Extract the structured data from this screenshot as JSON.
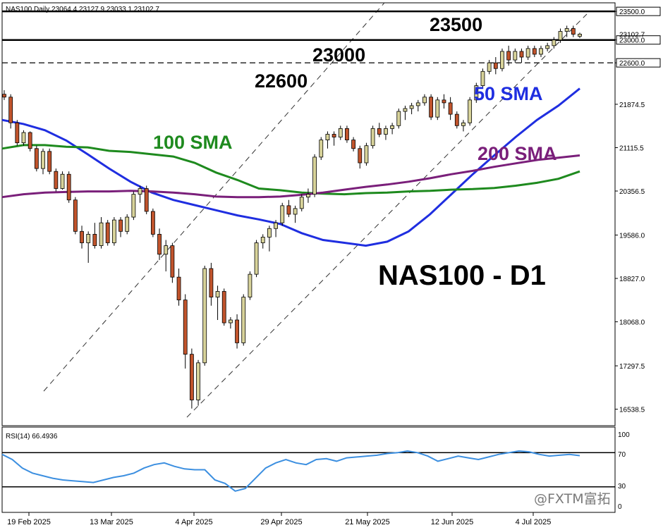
{
  "header": {
    "symbol_line": "NAS100,Daily  23064.4 23127.9 23033.1 23102.7"
  },
  "watermark": "@FXTM富拓",
  "annotations": {
    "big_title": "NAS100 - D1",
    "level_23500": "23500",
    "level_23000": "23000",
    "level_22600": "22600",
    "sma50": "50 SMA",
    "sma100": "100 SMA",
    "sma200": "200 SMA"
  },
  "rsi_panel": {
    "label": "RSI(14) 66.4936",
    "scale": [
      "100",
      "70",
      "30",
      "0"
    ]
  },
  "colors": {
    "bull_candle": "#d8d39a",
    "bear_candle": "#c1542c",
    "sma50": "#1f2ee0",
    "sma100": "#1e8a1e",
    "sma200": "#7a1f7a",
    "rsi_line": "#3c8fe0",
    "annotation_black": "#000000"
  },
  "chart_data": {
    "type": "candlestick",
    "title": "NAS100 - D1",
    "x_tick_labels": [
      "19 Feb 2025",
      "13 Mar 2025",
      "4 Apr 2025",
      "29 Apr 2025",
      "21 May 2025",
      "12 Jun 2025",
      "4 Jul 2025"
    ],
    "y_tick_labels": [
      "23500.0",
      "23000.0",
      "22600.0",
      "21874.5",
      "21115.5",
      "20356.5",
      "19586.0",
      "18827.0",
      "18068.0",
      "17297.5",
      "16538.5"
    ],
    "current_price_label": "23102.7",
    "ylim": [
      16250,
      23650
    ],
    "horizontal_levels": [
      23500,
      23000,
      22600
    ],
    "ohlc": [
      [
        22050,
        22120,
        21950,
        22000
      ],
      [
        22000,
        22050,
        21450,
        21550
      ],
      [
        21550,
        21600,
        21150,
        21200
      ],
      [
        21200,
        21420,
        21150,
        21380
      ],
      [
        21380,
        21400,
        21050,
        21100
      ],
      [
        21100,
        21150,
        20700,
        20750
      ],
      [
        20750,
        21100,
        20650,
        21050
      ],
      [
        21050,
        21100,
        20650,
        20700
      ],
      [
        20700,
        20750,
        20350,
        20400
      ],
      [
        20400,
        20700,
        20380,
        20650
      ],
      [
        20650,
        20700,
        20150,
        20200
      ],
      [
        20200,
        20250,
        19600,
        19650
      ],
      [
        19650,
        19750,
        19350,
        19450
      ],
      [
        19450,
        19650,
        19100,
        19600
      ],
      [
        19600,
        19800,
        19350,
        19400
      ],
      [
        19400,
        19900,
        19350,
        19800
      ],
      [
        19800,
        19850,
        19400,
        19450
      ],
      [
        19450,
        19900,
        19400,
        19850
      ],
      [
        19850,
        19900,
        19550,
        19650
      ],
      [
        19650,
        19950,
        19600,
        19900
      ],
      [
        19900,
        20350,
        19850,
        20300
      ],
      [
        20300,
        20450,
        20150,
        20400
      ],
      [
        20400,
        20450,
        19950,
        20000
      ],
      [
        20000,
        20050,
        19550,
        19600
      ],
      [
        19600,
        19700,
        19150,
        19250
      ],
      [
        19250,
        19500,
        18950,
        19400
      ],
      [
        19400,
        19450,
        18750,
        18850
      ],
      [
        18850,
        19000,
        18350,
        18450
      ],
      [
        18450,
        18550,
        17250,
        17500
      ],
      [
        17500,
        17600,
        16550,
        16700
      ],
      [
        16700,
        17400,
        16600,
        17350
      ],
      [
        17350,
        19050,
        17300,
        19000
      ],
      [
        19000,
        19100,
        18350,
        18500
      ],
      [
        18500,
        18700,
        18100,
        18600
      ],
      [
        18600,
        18650,
        18000,
        18050
      ],
      [
        18050,
        18150,
        17950,
        18100
      ],
      [
        18100,
        18200,
        17600,
        17700
      ],
      [
        17700,
        18550,
        17650,
        18500
      ],
      [
        18500,
        18950,
        18450,
        18900
      ],
      [
        18900,
        19500,
        18850,
        19450
      ],
      [
        19450,
        19600,
        19350,
        19550
      ],
      [
        19550,
        19750,
        19300,
        19700
      ],
      [
        19700,
        19850,
        19550,
        19800
      ],
      [
        19800,
        20150,
        19750,
        20100
      ],
      [
        20100,
        20200,
        19900,
        19950
      ],
      [
        19950,
        20100,
        19800,
        20050
      ],
      [
        20050,
        20300,
        20000,
        20250
      ],
      [
        20250,
        20400,
        20150,
        20300
      ],
      [
        20300,
        21000,
        20250,
        20950
      ],
      [
        20950,
        21300,
        20900,
        21250
      ],
      [
        21250,
        21400,
        21100,
        21350
      ],
      [
        21350,
        21400,
        21150,
        21300
      ],
      [
        21300,
        21500,
        21250,
        21450
      ],
      [
        21450,
        21500,
        21200,
        21250
      ],
      [
        21250,
        21300,
        21050,
        21100
      ],
      [
        21100,
        21150,
        20750,
        20850
      ],
      [
        20850,
        21200,
        20800,
        21150
      ],
      [
        21150,
        21500,
        21100,
        21450
      ],
      [
        21450,
        21550,
        21300,
        21350
      ],
      [
        21350,
        21500,
        21250,
        21450
      ],
      [
        21450,
        21550,
        21350,
        21500
      ],
      [
        21500,
        21800,
        21450,
        21750
      ],
      [
        21750,
        21850,
        21600,
        21800
      ],
      [
        21800,
        21900,
        21700,
        21850
      ],
      [
        21850,
        21950,
        21750,
        21900
      ],
      [
        21900,
        22050,
        21850,
        22000
      ],
      [
        22000,
        22050,
        21600,
        21650
      ],
      [
        21650,
        22000,
        21600,
        21950
      ],
      [
        21950,
        22050,
        21800,
        21900
      ],
      [
        21900,
        22000,
        21600,
        21700
      ],
      [
        21700,
        21750,
        21450,
        21500
      ],
      [
        21500,
        21600,
        21400,
        21550
      ],
      [
        21550,
        22000,
        21500,
        21950
      ],
      [
        21950,
        22250,
        21900,
        22200
      ],
      [
        22200,
        22500,
        22150,
        22450
      ],
      [
        22450,
        22650,
        22400,
        22600
      ],
      [
        22600,
        22700,
        22400,
        22500
      ],
      [
        22500,
        22850,
        22450,
        22800
      ],
      [
        22800,
        22900,
        22550,
        22650
      ],
      [
        22650,
        22850,
        22600,
        22800
      ],
      [
        22800,
        22850,
        22600,
        22700
      ],
      [
        22700,
        22900,
        22650,
        22850
      ],
      [
        22850,
        22900,
        22700,
        22750
      ],
      [
        22750,
        22900,
        22700,
        22850
      ],
      [
        22850,
        22950,
        22800,
        22900
      ],
      [
        22900,
        23050,
        22850,
        23000
      ],
      [
        23000,
        23200,
        22950,
        23150
      ],
      [
        23150,
        23250,
        23050,
        23200
      ],
      [
        23200,
        23250,
        23050,
        23100
      ],
      [
        23064.4,
        23127.9,
        23033.1,
        23102.7
      ]
    ],
    "series": [
      {
        "name": "50 SMA",
        "values": [
          21600,
          21530,
          21420,
          21240,
          21000,
          20750,
          20520,
          20330,
          20200,
          20110,
          20020,
          19930,
          19860,
          19780,
          19620,
          19500,
          19450,
          19400,
          19470,
          19650,
          19950,
          20300,
          20650,
          20980,
          21300,
          21600,
          21850,
          22150
        ]
      },
      {
        "name": "100 SMA",
        "values": [
          21100,
          21160,
          21160,
          21130,
          21120,
          21060,
          21040,
          21000,
          20960,
          20850,
          20680,
          20550,
          20400,
          20370,
          20330,
          20310,
          20300,
          20320,
          20330,
          20350,
          20360,
          20380,
          20390,
          20410,
          20450,
          20500,
          20570,
          20700
        ]
      },
      {
        "name": "200 SMA",
        "values": [
          20250,
          20300,
          20330,
          20340,
          20350,
          20350,
          20360,
          20350,
          20330,
          20300,
          20260,
          20250,
          20250,
          20260,
          20290,
          20330,
          20380,
          20430,
          20470,
          20520,
          20580,
          20650,
          20710,
          20780,
          20840,
          20900,
          20940,
          20980
        ]
      },
      {
        "name": "RSI(14)",
        "values": [
          68,
          62,
          52,
          46,
          43,
          40,
          38,
          37,
          36,
          35,
          38,
          41,
          43,
          46,
          52,
          56,
          58,
          54,
          51,
          50,
          50,
          38,
          34,
          25,
          28,
          40,
          52,
          58,
          62,
          58,
          56,
          62,
          63,
          60,
          64,
          65,
          66,
          67,
          69,
          70,
          72,
          70,
          66,
          60,
          63,
          66,
          64,
          62,
          65,
          68,
          70,
          72,
          71,
          68,
          66,
          67,
          68,
          66.5
        ]
      }
    ],
    "rsi_range": [
      0,
      100
    ],
    "rsi_levels": [
      70,
      30
    ]
  }
}
